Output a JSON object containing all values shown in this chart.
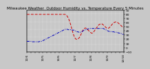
{
  "title": "Milwaukee Weather  Outdoor Humidity vs. Temperature Every 5 Minutes",
  "bg_color": "#c8c8c8",
  "plot_bg_color": "#c8c8c8",
  "grid_color": "#ffffff",
  "red_color": "#cc0000",
  "blue_color": "#0000bb",
  "ylim_left": [
    0,
    110
  ],
  "ylim_right": [
    -10,
    90
  ],
  "n_points": 120,
  "humidity": [
    99,
    99,
    99,
    99,
    99,
    99,
    99,
    99,
    99,
    99,
    99,
    99,
    99,
    99,
    99,
    99,
    99,
    99,
    99,
    99,
    99,
    99,
    99,
    99,
    99,
    99,
    99,
    99,
    99,
    99,
    99,
    99,
    99,
    99,
    99,
    99,
    99,
    99,
    99,
    99,
    99,
    99,
    99,
    99,
    99,
    99,
    99,
    99,
    98,
    96,
    93,
    89,
    84,
    78,
    71,
    63,
    55,
    48,
    42,
    37,
    34,
    33,
    33,
    34,
    36,
    39,
    43,
    48,
    53,
    57,
    60,
    62,
    63,
    62,
    60,
    58,
    56,
    54,
    52,
    50,
    49,
    50,
    52,
    55,
    58,
    61,
    64,
    67,
    70,
    72,
    73,
    74,
    74,
    73,
    71,
    69,
    67,
    65,
    63,
    62,
    62,
    63,
    65,
    67,
    70,
    73,
    75,
    77,
    78,
    79,
    79,
    78,
    77,
    75,
    73,
    71,
    69,
    67,
    65,
    64
  ],
  "temperature": [
    15,
    15,
    15,
    15,
    15,
    15,
    14,
    14,
    14,
    14,
    14,
    14,
    14,
    14,
    14,
    14,
    15,
    15,
    15,
    16,
    17,
    18,
    19,
    20,
    21,
    22,
    23,
    24,
    25,
    26,
    27,
    28,
    29,
    30,
    31,
    32,
    33,
    34,
    35,
    36,
    37,
    38,
    39,
    40,
    41,
    42,
    43,
    44,
    44,
    44,
    44,
    43,
    43,
    43,
    43,
    43,
    42,
    42,
    42,
    41,
    40,
    39,
    38,
    38,
    37,
    37,
    37,
    38,
    39,
    40,
    41,
    42,
    43,
    44,
    44,
    45,
    45,
    46,
    46,
    46,
    46,
    46,
    46,
    46,
    46,
    46,
    46,
    46,
    46,
    46,
    46,
    46,
    46,
    46,
    46,
    45,
    44,
    43,
    42,
    41,
    40,
    39,
    39,
    39,
    38,
    38,
    38,
    38,
    37,
    37,
    37,
    36,
    36,
    35,
    35,
    34,
    34,
    33,
    32,
    32
  ],
  "xtick_labels": [
    "12/4",
    "",
    "",
    "",
    "12/5",
    "",
    "",
    "",
    "12/6",
    "",
    "",
    "",
    "12/7",
    "",
    "",
    "",
    "12/8",
    "",
    "",
    "",
    "12/9",
    "",
    "",
    "",
    "12/10"
  ],
  "yticks_right": [
    -10,
    0,
    10,
    20,
    30,
    40,
    50,
    60,
    70,
    80,
    90
  ],
  "title_fontsize": 4.0,
  "tick_fontsize": 3.2,
  "linewidth": 0.7
}
